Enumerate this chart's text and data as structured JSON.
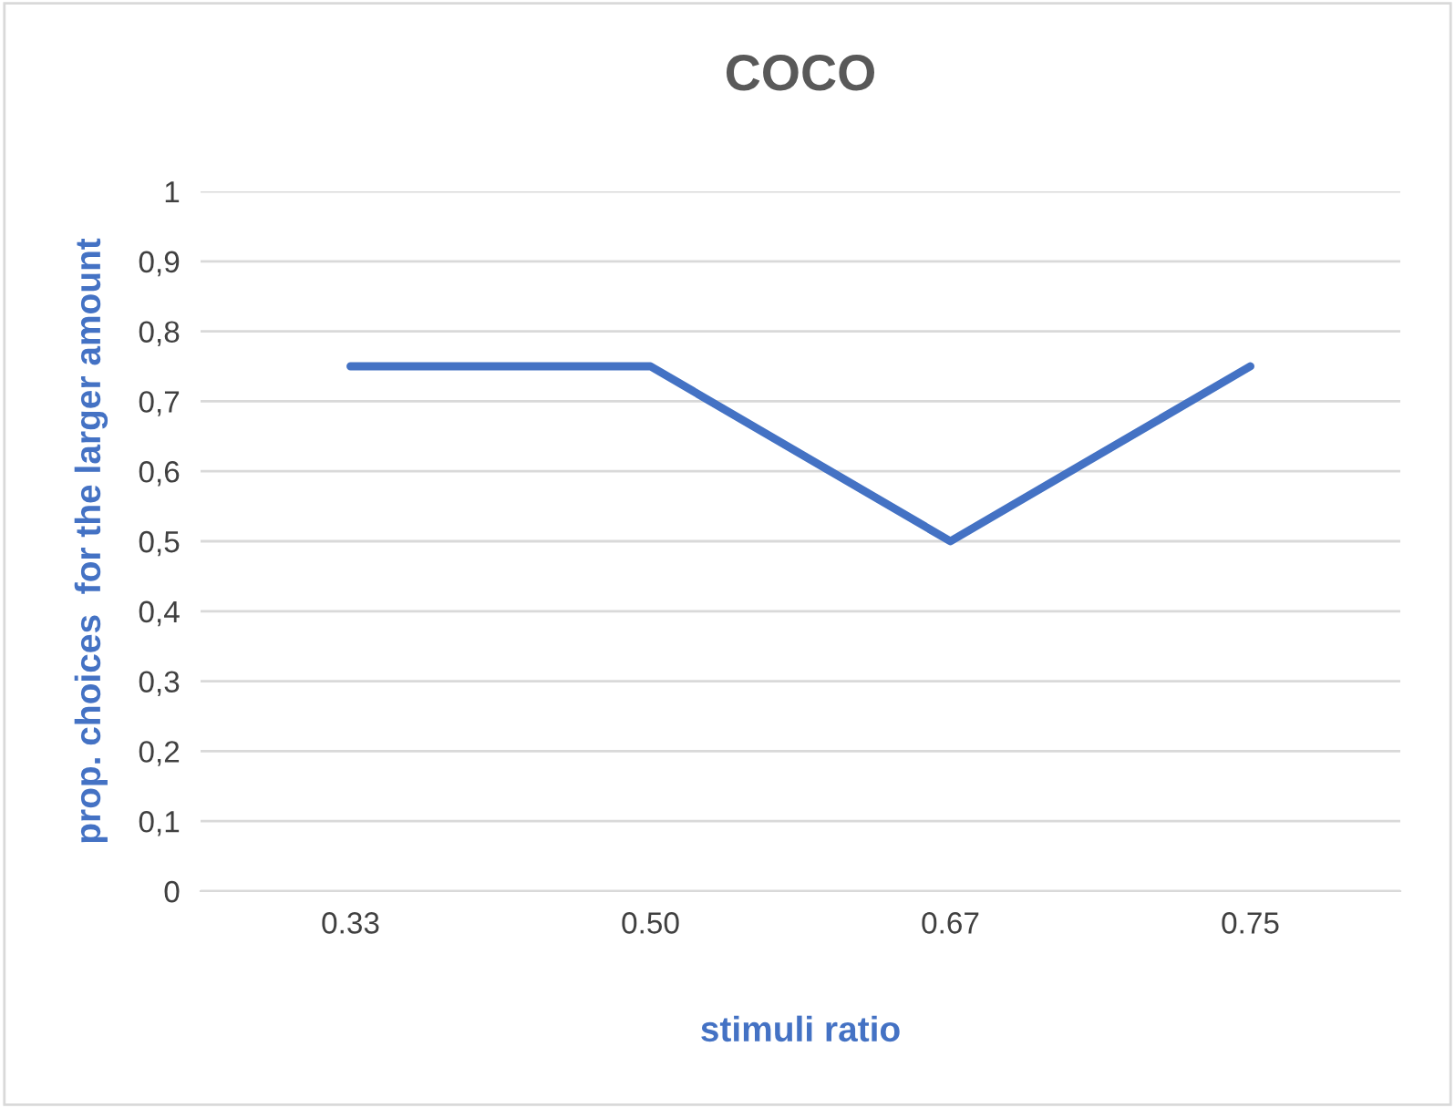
{
  "chart_data": {
    "type": "line",
    "title": "COCO",
    "xlabel": "stimuli ratio",
    "ylabel": "prop. choices  for the larger amount",
    "categories": [
      "0.33",
      "0.50",
      "0.67",
      "0.75"
    ],
    "series": [
      {
        "color": "#4472c4",
        "values": [
          0.75,
          0.75,
          0.5,
          0.75
        ]
      }
    ],
    "ylim": [
      0,
      1
    ],
    "yticks": [
      0,
      {
        "value": 0.1,
        "label": "0,1"
      },
      {
        "value": 0.2,
        "label": "0,2"
      },
      {
        "value": 0.3,
        "label": "0,3"
      },
      {
        "value": 0.4,
        "label": "0,4"
      },
      {
        "value": 0.5,
        "label": "0,5"
      },
      {
        "value": 0.6,
        "label": "0,6"
      },
      {
        "value": 0.7,
        "label": "0,7"
      },
      {
        "value": 0.8,
        "label": "0,8"
      },
      {
        "value": 0.9,
        "label": "0,9"
      },
      1
    ],
    "grid": "y",
    "marker": "none",
    "line_style": "solid"
  }
}
